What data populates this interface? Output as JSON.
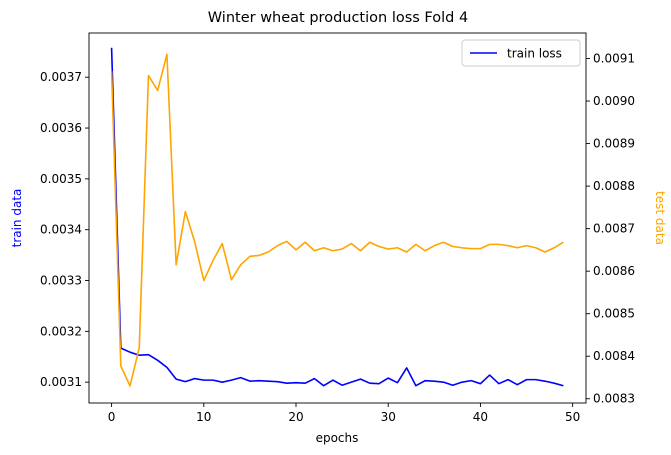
{
  "chart_data": {
    "type": "line",
    "title": "Winter wheat production loss Fold 4",
    "xlabel": "epochs",
    "ylabel_left": "train data",
    "ylabel_right": "test data",
    "xlim": [
      -2.45,
      51.45
    ],
    "ylim_left": [
      0.003059,
      0.003787
    ],
    "ylim_right": [
      0.00829,
      0.00916
    ],
    "x_ticks": [
      0,
      10,
      20,
      30,
      40,
      50
    ],
    "y_left_ticks": [
      0.0031,
      0.0032,
      0.0033,
      0.0034,
      0.0035,
      0.0036,
      0.0037
    ],
    "y_right_ticks": [
      0.0083,
      0.0084,
      0.0085,
      0.0086,
      0.0087,
      0.0088,
      0.0089,
      0.009,
      0.0091
    ],
    "grid": false,
    "legend": {
      "position": "top-right",
      "entries": [
        "train loss"
      ]
    },
    "colors": {
      "train": "#0000ff",
      "test": "#ffa500"
    },
    "series": [
      {
        "name": "train loss",
        "axis": "left",
        "x": [
          0,
          1,
          2,
          3,
          4,
          5,
          6,
          7,
          8,
          9,
          10,
          11,
          12,
          13,
          14,
          15,
          16,
          17,
          18,
          19,
          20,
          21,
          22,
          23,
          24,
          25,
          26,
          27,
          28,
          29,
          30,
          31,
          32,
          33,
          34,
          35,
          36,
          37,
          38,
          39,
          40,
          41,
          42,
          43,
          44,
          45,
          46,
          47,
          48,
          49
        ],
        "values": [
          0.003758,
          0.003167,
          0.003159,
          0.003153,
          0.003154,
          0.003143,
          0.003129,
          0.003106,
          0.003101,
          0.003107,
          0.003104,
          0.003104,
          0.0031,
          0.003104,
          0.003109,
          0.003102,
          0.003103,
          0.003102,
          0.003101,
          0.003098,
          0.003099,
          0.003098,
          0.003107,
          0.003093,
          0.003104,
          0.003094,
          0.0031,
          0.003106,
          0.003098,
          0.003097,
          0.003108,
          0.003099,
          0.003128,
          0.003093,
          0.003103,
          0.003102,
          0.0031,
          0.003094,
          0.0031,
          0.003103,
          0.003097,
          0.003114,
          0.003097,
          0.003105,
          0.003095,
          0.003105,
          0.003105,
          0.003102,
          0.003098,
          0.003093
        ]
      },
      {
        "name": "",
        "axis": "right",
        "x": [
          0,
          1,
          2,
          3,
          4,
          5,
          6,
          7,
          8,
          9,
          10,
          11,
          12,
          13,
          14,
          15,
          16,
          17,
          18,
          19,
          20,
          21,
          22,
          23,
          24,
          25,
          26,
          27,
          28,
          29,
          30,
          31,
          32,
          33,
          34,
          35,
          36,
          37,
          38,
          39,
          40,
          41,
          42,
          43,
          44,
          45,
          46,
          47,
          48,
          49
        ],
        "values": [
          0.00907,
          0.008377,
          0.00833,
          0.00842,
          0.00906,
          0.009025,
          0.00911,
          0.008615,
          0.00874,
          0.00867,
          0.008578,
          0.008625,
          0.008665,
          0.00858,
          0.008615,
          0.008635,
          0.008637,
          0.008645,
          0.00866,
          0.00867,
          0.00865,
          0.008668,
          0.008648,
          0.008655,
          0.008648,
          0.008652,
          0.008665,
          0.008648,
          0.008668,
          0.008658,
          0.008652,
          0.008655,
          0.008645,
          0.008663,
          0.008648,
          0.00866,
          0.008668,
          0.008658,
          0.008655,
          0.008653,
          0.008653,
          0.008663,
          0.008663,
          0.00866,
          0.008655,
          0.00866,
          0.008655,
          0.008645,
          0.008655,
          0.008668
        ]
      }
    ]
  }
}
